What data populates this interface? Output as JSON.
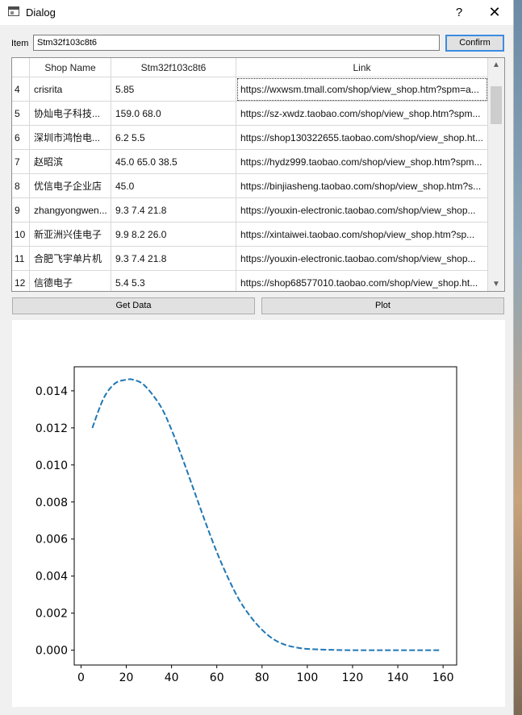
{
  "window": {
    "title": "Dialog",
    "help_label": "?",
    "close_label": "✕"
  },
  "search": {
    "label": "Item",
    "value": "Stm32f103c8t6",
    "confirm_label": "Confirm"
  },
  "table": {
    "columns": [
      "Shop Name",
      "Stm32f103c8t6",
      "Link"
    ],
    "rows": [
      {
        "index": "4",
        "shop": "crisrita",
        "price": "5.85",
        "link": "https://wxwsm.tmall.com/shop/view_shop.htm?spm=a..."
      },
      {
        "index": "5",
        "shop": "协灿电子科技...",
        "price": "159.0 68.0",
        "link": "https://sz-xwdz.taobao.com/shop/view_shop.htm?spm..."
      },
      {
        "index": "6",
        "shop": "深圳市鸿怡电...",
        "price": "6.2 5.5",
        "link": "https://shop130322655.taobao.com/shop/view_shop.ht..."
      },
      {
        "index": "7",
        "shop": "赵昭滨",
        "price": "45.0 65.0 38.5",
        "link": "https://hydz999.taobao.com/shop/view_shop.htm?spm..."
      },
      {
        "index": "8",
        "shop": "优信电子企业店",
        "price": "45.0",
        "link": "https://binjiasheng.taobao.com/shop/view_shop.htm?s..."
      },
      {
        "index": "9",
        "shop": "zhangyongwen...",
        "price": "9.3 7.4 21.8",
        "link": "https://youxin-electronic.taobao.com/shop/view_shop..."
      },
      {
        "index": "10",
        "shop": "新亚洲兴佳电子",
        "price": "9.9 8.2 26.0",
        "link": "https://xintaiwei.taobao.com/shop/view_shop.htm?sp..."
      },
      {
        "index": "11",
        "shop": "合肥飞宇单片机",
        "price": "9.3 7.4 21.8",
        "link": "https://youxin-electronic.taobao.com/shop/view_shop..."
      },
      {
        "index": "12",
        "shop": "信德电子",
        "price": "5.4 5.3",
        "link": "https://shop68577010.taobao.com/shop/view_shop.ht..."
      }
    ]
  },
  "buttons": {
    "get_data": "Get Data",
    "plot": "Plot"
  },
  "chart_data": {
    "type": "line",
    "line_style": "dashed",
    "color": "#1f77b4",
    "xlim": [
      -3,
      166
    ],
    "ylim": [
      -0.0008,
      0.0153
    ],
    "xticks": [
      0,
      20,
      40,
      60,
      80,
      100,
      120,
      140,
      160
    ],
    "yticks": [
      0.0,
      0.002,
      0.004,
      0.006,
      0.008,
      0.01,
      0.012,
      0.014
    ],
    "ytick_labels": [
      "0.000",
      "0.002",
      "0.004",
      "0.006",
      "0.008",
      "0.010",
      "0.012",
      "0.014"
    ],
    "series": [
      {
        "x": [
          5,
          10,
          15,
          20,
          23,
          28,
          35,
          40,
          45,
          50,
          55,
          60,
          65,
          70,
          75,
          80,
          85,
          90,
          95,
          100,
          110,
          120,
          130,
          140,
          150,
          159
        ],
        "y": [
          0.012,
          0.0136,
          0.0144,
          0.0146,
          0.0146,
          0.0143,
          0.0132,
          0.0119,
          0.0103,
          0.0086,
          0.0069,
          0.0053,
          0.0039,
          0.0027,
          0.0018,
          0.0011,
          0.0006,
          0.0003,
          0.00015,
          7e-05,
          2e-05,
          0.0,
          0.0,
          0.0,
          0.0,
          0.0
        ]
      }
    ]
  }
}
